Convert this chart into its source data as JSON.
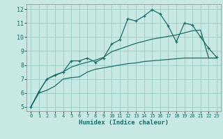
{
  "xlabel": "Humidex (Indice chaleur)",
  "background_color": "#c8e8e4",
  "grid_color": "#98ccc8",
  "line_color": "#1a6e68",
  "x_values": [
    0,
    1,
    2,
    3,
    4,
    5,
    6,
    7,
    8,
    9,
    10,
    11,
    12,
    13,
    14,
    15,
    16,
    17,
    18,
    19,
    20,
    21,
    22,
    23
  ],
  "line1_y": [
    5.0,
    6.1,
    7.0,
    7.3,
    7.5,
    8.3,
    8.3,
    8.5,
    8.2,
    8.5,
    9.5,
    9.8,
    11.3,
    11.15,
    11.5,
    11.95,
    11.65,
    10.8,
    9.65,
    11.0,
    10.85,
    10.0,
    9.2,
    8.55
  ],
  "line2_y": [
    5.0,
    6.1,
    7.0,
    7.25,
    7.5,
    7.85,
    8.05,
    8.2,
    8.35,
    8.55,
    8.95,
    9.15,
    9.35,
    9.55,
    9.7,
    9.85,
    9.95,
    10.05,
    10.15,
    10.3,
    10.45,
    10.5,
    8.5,
    8.5
  ],
  "line3_y": [
    5.0,
    6.0,
    6.2,
    6.5,
    7.0,
    7.1,
    7.15,
    7.5,
    7.7,
    7.8,
    7.9,
    8.0,
    8.1,
    8.15,
    8.25,
    8.3,
    8.35,
    8.4,
    8.45,
    8.5,
    8.5,
    8.5,
    8.5,
    8.5
  ],
  "ylim": [
    4.7,
    12.35
  ],
  "xlim": [
    -0.5,
    23.5
  ],
  "yticks": [
    5,
    6,
    7,
    8,
    9,
    10,
    11,
    12
  ],
  "xticks": [
    0,
    1,
    2,
    3,
    4,
    5,
    6,
    7,
    8,
    9,
    10,
    11,
    12,
    13,
    14,
    15,
    16,
    17,
    18,
    19,
    20,
    21,
    22,
    23
  ],
  "tick_color": "#1a6e68",
  "label_color": "#1a6e68",
  "spine_color": "#888888"
}
